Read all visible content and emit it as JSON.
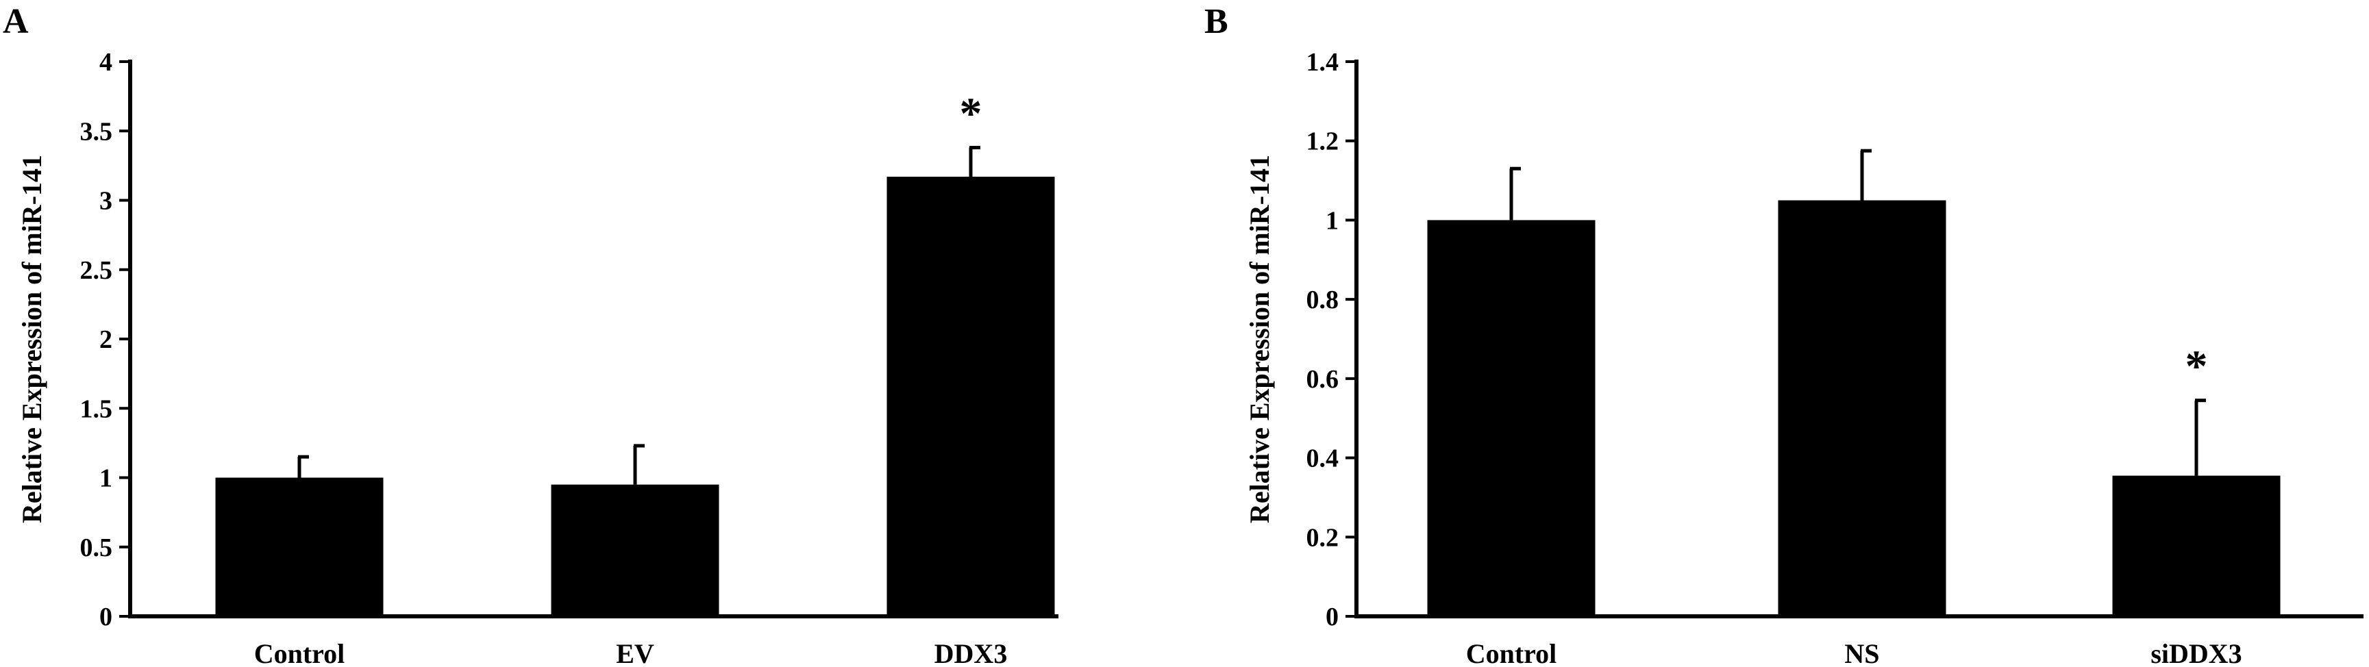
{
  "chart_data": [
    {
      "type": "bar",
      "panel": "A",
      "ylabel": "Relative Expression of miR-141",
      "ylim": [
        0,
        4
      ],
      "yticks": [
        "0",
        "0.5",
        "1",
        "1.5",
        "2",
        "2.5",
        "3",
        "3.5",
        "4"
      ],
      "categories": [
        "Control",
        "EV",
        "DDX3"
      ],
      "values": [
        1.0,
        0.95,
        3.17
      ],
      "errors": [
        0.15,
        0.28,
        0.21
      ],
      "annotations": [
        "",
        "",
        "*"
      ],
      "bar_color": "#000000",
      "grid": false
    },
    {
      "type": "bar",
      "panel": "B",
      "ylabel": "Relative Expression of miR-141",
      "ylim": [
        0,
        1.4
      ],
      "yticks": [
        "0",
        "0.2",
        "0.4",
        "0.6",
        "0.8",
        "1",
        "1.2",
        "1.4"
      ],
      "categories": [
        "Control",
        "NS",
        "siDDX3"
      ],
      "values": [
        1.0,
        1.05,
        0.355
      ],
      "errors": [
        0.13,
        0.125,
        0.19
      ],
      "annotations": [
        "",
        "",
        "*"
      ],
      "bar_color": "#000000",
      "grid": false
    }
  ]
}
